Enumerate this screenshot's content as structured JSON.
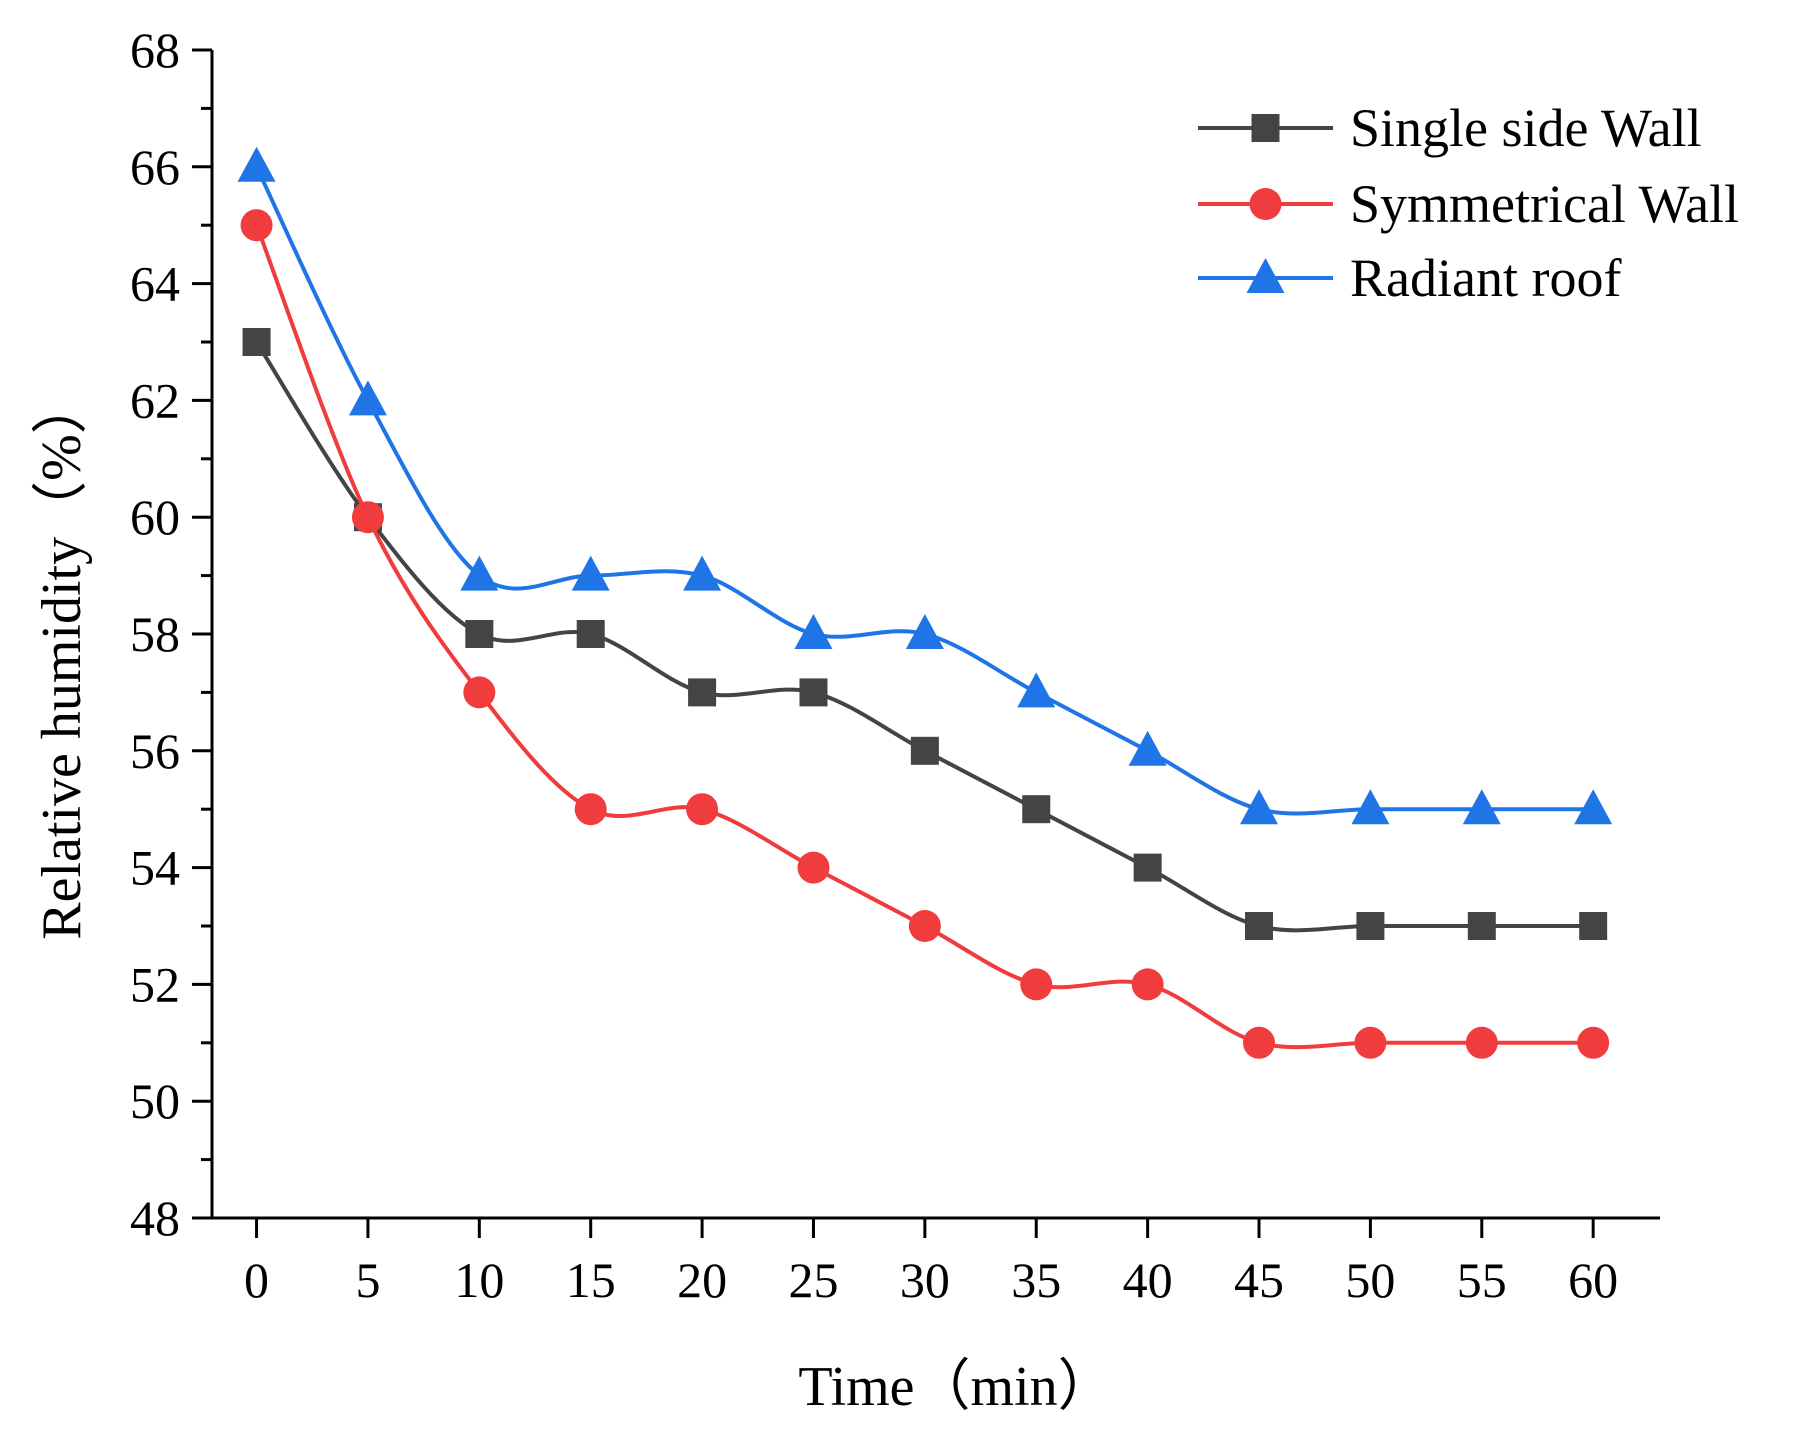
{
  "chart_data": {
    "type": "line",
    "title": "",
    "xlabel": "Time（min）",
    "ylabel": "Relative humidity（%）",
    "x": [
      0,
      5,
      10,
      15,
      20,
      25,
      30,
      35,
      40,
      45,
      50,
      55,
      60
    ],
    "x_ticks": [
      "0",
      "5",
      "10",
      "15",
      "20",
      "25",
      "30",
      "35",
      "40",
      "45",
      "50",
      "55",
      "60"
    ],
    "y_ticks": [
      "48",
      "50",
      "52",
      "54",
      "56",
      "58",
      "60",
      "62",
      "64",
      "66",
      "68"
    ],
    "ylim": [
      48,
      68
    ],
    "xlim": [
      -2,
      63
    ],
    "grid": false,
    "legend_position": "top-right",
    "smooth": true,
    "series": [
      {
        "name": "Single side Wall",
        "color": "#444444",
        "marker": "square",
        "values": [
          63,
          60,
          58,
          58,
          57,
          57,
          56,
          55,
          54,
          53,
          53,
          53,
          53
        ]
      },
      {
        "name": "Symmetrical Wall",
        "color": "#f03c3c",
        "marker": "circle",
        "values": [
          65,
          60,
          57,
          55,
          55,
          54,
          53,
          52,
          52,
          51,
          51,
          51,
          51
        ]
      },
      {
        "name": "Radiant roof",
        "color": "#1f74e6",
        "marker": "triangle",
        "values": [
          66,
          62,
          59,
          59,
          59,
          58,
          58,
          57,
          56,
          55,
          55,
          55,
          55
        ]
      }
    ]
  }
}
